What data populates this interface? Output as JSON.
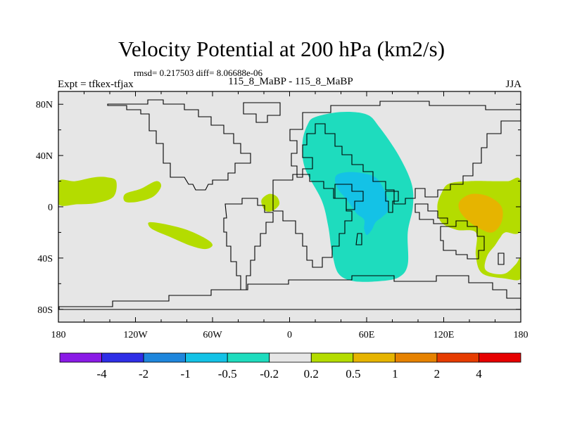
{
  "title": "Velocity Potential at 200 hPa (km2/s)",
  "stats": "rmsd= 0.217503 diff= 8.06688e-06",
  "expt": "Expt = tfkex-tfjax",
  "case_name": "115_8_MaBP - 115_8_MaBP",
  "season": "JJA",
  "chart_data": {
    "type": "heatmap",
    "projection": "cylindrical-equidistant",
    "xlim": [
      -180,
      180
    ],
    "ylim": [
      -90,
      90
    ],
    "x_ticks": [
      {
        "value": -180,
        "label": "180"
      },
      {
        "value": -120,
        "label": "120W"
      },
      {
        "value": -60,
        "label": "60W"
      },
      {
        "value": 0,
        "label": "0"
      },
      {
        "value": 60,
        "label": "60E"
      },
      {
        "value": 120,
        "label": "120E"
      },
      {
        "value": 180,
        "label": "180"
      }
    ],
    "y_ticks": [
      {
        "value": 80,
        "label": "80N"
      },
      {
        "value": 40,
        "label": "40N"
      },
      {
        "value": 0,
        "label": "0"
      },
      {
        "value": -40,
        "label": "40S"
      },
      {
        "value": -80,
        "label": "80S"
      }
    ],
    "colorbar": {
      "levels": [
        "-4",
        "-2",
        "-1",
        "-0.5",
        "-0.2",
        "0.2",
        "0.5",
        "1",
        "2",
        "4"
      ],
      "colors": [
        "#8a1ae6",
        "#2e2ee6",
        "#1e86dc",
        "#14c2e6",
        "#1edcbe",
        "#e6e6e6",
        "#b4dc00",
        "#e6b400",
        "#e68200",
        "#e63c00",
        "#e60000"
      ]
    },
    "contour_regions": [
      {
        "band": "-0.5 to -0.2",
        "color": "#1edcbe",
        "polygon": [
          [
            20,
            70
          ],
          [
            40,
            74
          ],
          [
            60,
            72
          ],
          [
            70,
            62
          ],
          [
            85,
            40
          ],
          [
            95,
            18
          ],
          [
            96,
            0
          ],
          [
            92,
            -20
          ],
          [
            92,
            -45
          ],
          [
            85,
            -55
          ],
          [
            70,
            -58
          ],
          [
            50,
            -58
          ],
          [
            38,
            -52
          ],
          [
            33,
            -35
          ],
          [
            30,
            -15
          ],
          [
            25,
            5
          ],
          [
            12,
            30
          ],
          [
            10,
            50
          ],
          [
            14,
            64
          ]
        ]
      },
      {
        "band": "-1 to -0.5",
        "color": "#14c2e6",
        "polygon": [
          [
            36,
            24
          ],
          [
            45,
            27
          ],
          [
            58,
            26
          ],
          [
            68,
            22
          ],
          [
            75,
            10
          ],
          [
            77,
            -2
          ],
          [
            72,
            -8
          ],
          [
            67,
            -12
          ],
          [
            64,
            -18
          ],
          [
            60,
            -22
          ],
          [
            58,
            -17
          ],
          [
            58,
            -10
          ],
          [
            52,
            -5
          ],
          [
            45,
            5
          ],
          [
            37,
            15
          ]
        ]
      },
      {
        "band": "0.2 to 0.5",
        "color": "#b4dc00",
        "polygon": [
          [
            -180,
            20
          ],
          [
            -167,
            20
          ],
          [
            -152,
            23
          ],
          [
            -142,
            23
          ],
          [
            -135,
            20
          ],
          [
            -137,
            8
          ],
          [
            -150,
            3
          ],
          [
            -165,
            2
          ],
          [
            -180,
            2
          ]
        ]
      },
      {
        "band": "0.2 to 0.5",
        "color": "#b4dc00",
        "polygon": [
          [
            -128,
            10
          ],
          [
            -116,
            14
          ],
          [
            -104,
            20
          ],
          [
            -100,
            16
          ],
          [
            -106,
            8
          ],
          [
            -118,
            4
          ],
          [
            -128,
            4
          ]
        ]
      },
      {
        "band": "0.2 to 0.5",
        "color": "#b4dc00",
        "polygon": [
          [
            -108,
            -12
          ],
          [
            -95,
            -14
          ],
          [
            -80,
            -18
          ],
          [
            -65,
            -25
          ],
          [
            -60,
            -30
          ],
          [
            -66,
            -33
          ],
          [
            -78,
            -30
          ],
          [
            -92,
            -24
          ],
          [
            -106,
            -18
          ],
          [
            -110,
            -14
          ]
        ]
      },
      {
        "band": "0.2 to 0.5",
        "color": "#b4dc00",
        "polygon": [
          [
            -22,
            5
          ],
          [
            -16,
            10
          ],
          [
            -10,
            8
          ],
          [
            -8,
            2
          ],
          [
            -13,
            -3
          ],
          [
            -19,
            -3
          ]
        ]
      },
      {
        "band": "0.2 to 0.5",
        "color": "#b4dc00",
        "polygon": [
          [
            118,
            10
          ],
          [
            124,
            18
          ],
          [
            140,
            20
          ],
          [
            158,
            20
          ],
          [
            170,
            20
          ],
          [
            180,
            20
          ],
          [
            180,
            -18
          ],
          [
            168,
            -20
          ],
          [
            164,
            -24
          ],
          [
            160,
            -30
          ],
          [
            154,
            -38
          ],
          [
            152,
            -48
          ],
          [
            158,
            -52
          ],
          [
            168,
            -52
          ],
          [
            176,
            -45
          ],
          [
            180,
            -40
          ],
          [
            180,
            -56
          ],
          [
            168,
            -56
          ],
          [
            150,
            -52
          ],
          [
            145,
            -38
          ],
          [
            145,
            -20
          ],
          [
            130,
            -18
          ],
          [
            118,
            -12
          ],
          [
            115,
            0
          ]
        ]
      },
      {
        "band": "0.5 to 1",
        "color": "#e6b400",
        "polygon": [
          [
            133,
            5
          ],
          [
            142,
            10
          ],
          [
            155,
            8
          ],
          [
            165,
            0
          ],
          [
            165,
            -12
          ],
          [
            158,
            -20
          ],
          [
            148,
            -17
          ],
          [
            138,
            -10
          ],
          [
            132,
            -2
          ]
        ]
      }
    ]
  }
}
